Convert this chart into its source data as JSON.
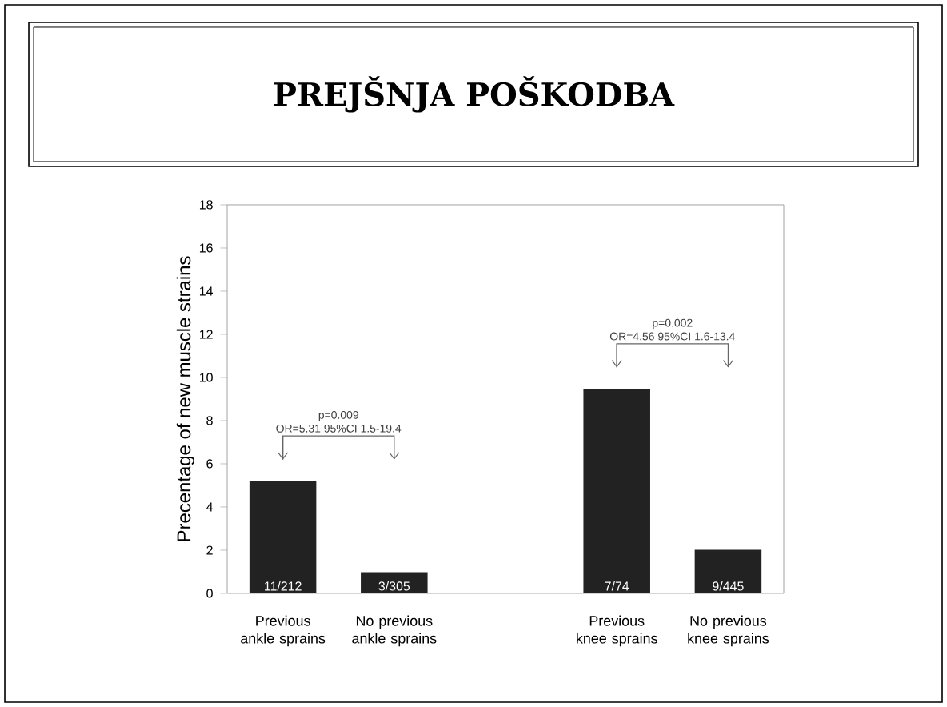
{
  "chart_data": {
    "type": "bar",
    "title": "PREJŠNJA POŠKODBA",
    "ylabel": "Precentage of new muscle strains",
    "categories": [
      "Previous ankle sprains",
      "No previous ankle sprains",
      null,
      "Previous knee sprains",
      "No previous knee sprains"
    ],
    "values": [
      5.19,
      0.98,
      null,
      9.46,
      2.02
    ],
    "value_labels": [
      "11/212",
      "3/305",
      null,
      "7/74",
      "9/445"
    ],
    "color": "#222222",
    "ylim": [
      0,
      18
    ],
    "yticks": [
      0,
      2,
      4,
      6,
      8,
      10,
      12,
      14,
      16,
      18
    ],
    "annotations": [
      "p=0.009",
      "OR=5.31  95%CI 1.5-19.4",
      "p=0.002",
      "OR=4.56  95%CI 1.6-13.4"
    ],
    "grid": false
  }
}
